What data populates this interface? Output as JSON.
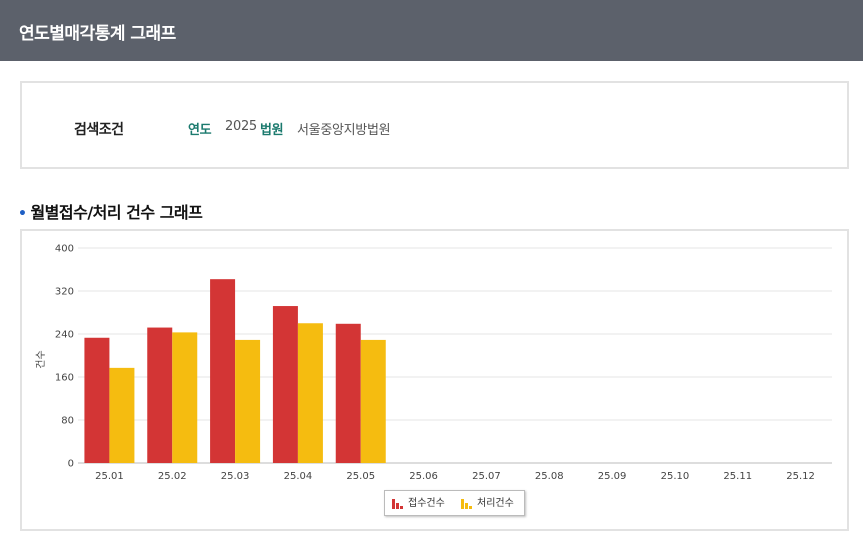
{
  "header": {
    "title": "연도별매각통계 그래프"
  },
  "search": {
    "label": "검색조건",
    "year_key": "연도",
    "year_value": "2025",
    "court_key": "법원",
    "court_value": "서울중앙지방법원"
  },
  "section": {
    "title": "월별접수/처리 건수 그래프"
  },
  "colors": {
    "received": "#d33535",
    "processed": "#f5bc10",
    "header_bg": "#5c616b"
  },
  "chart_data": {
    "type": "bar",
    "categories": [
      "25.01",
      "25.02",
      "25.03",
      "25.04",
      "25.05",
      "25.06",
      "25.07",
      "25.08",
      "25.09",
      "25.10",
      "25.11",
      "25.12"
    ],
    "series": [
      {
        "name": "접수건수",
        "values": [
          233,
          252,
          342,
          292,
          259,
          null,
          null,
          null,
          null,
          null,
          null,
          null
        ]
      },
      {
        "name": "처리건수",
        "values": [
          177,
          243,
          229,
          260,
          229,
          null,
          null,
          null,
          null,
          null,
          null,
          null
        ]
      }
    ],
    "ylabel": "건수",
    "xlabel": "",
    "ylim": [
      0,
      400
    ],
    "yticks": [
      "0",
      "80",
      "160",
      "240",
      "320",
      "400"
    ],
    "grid": true,
    "legend": "bottom-center"
  }
}
